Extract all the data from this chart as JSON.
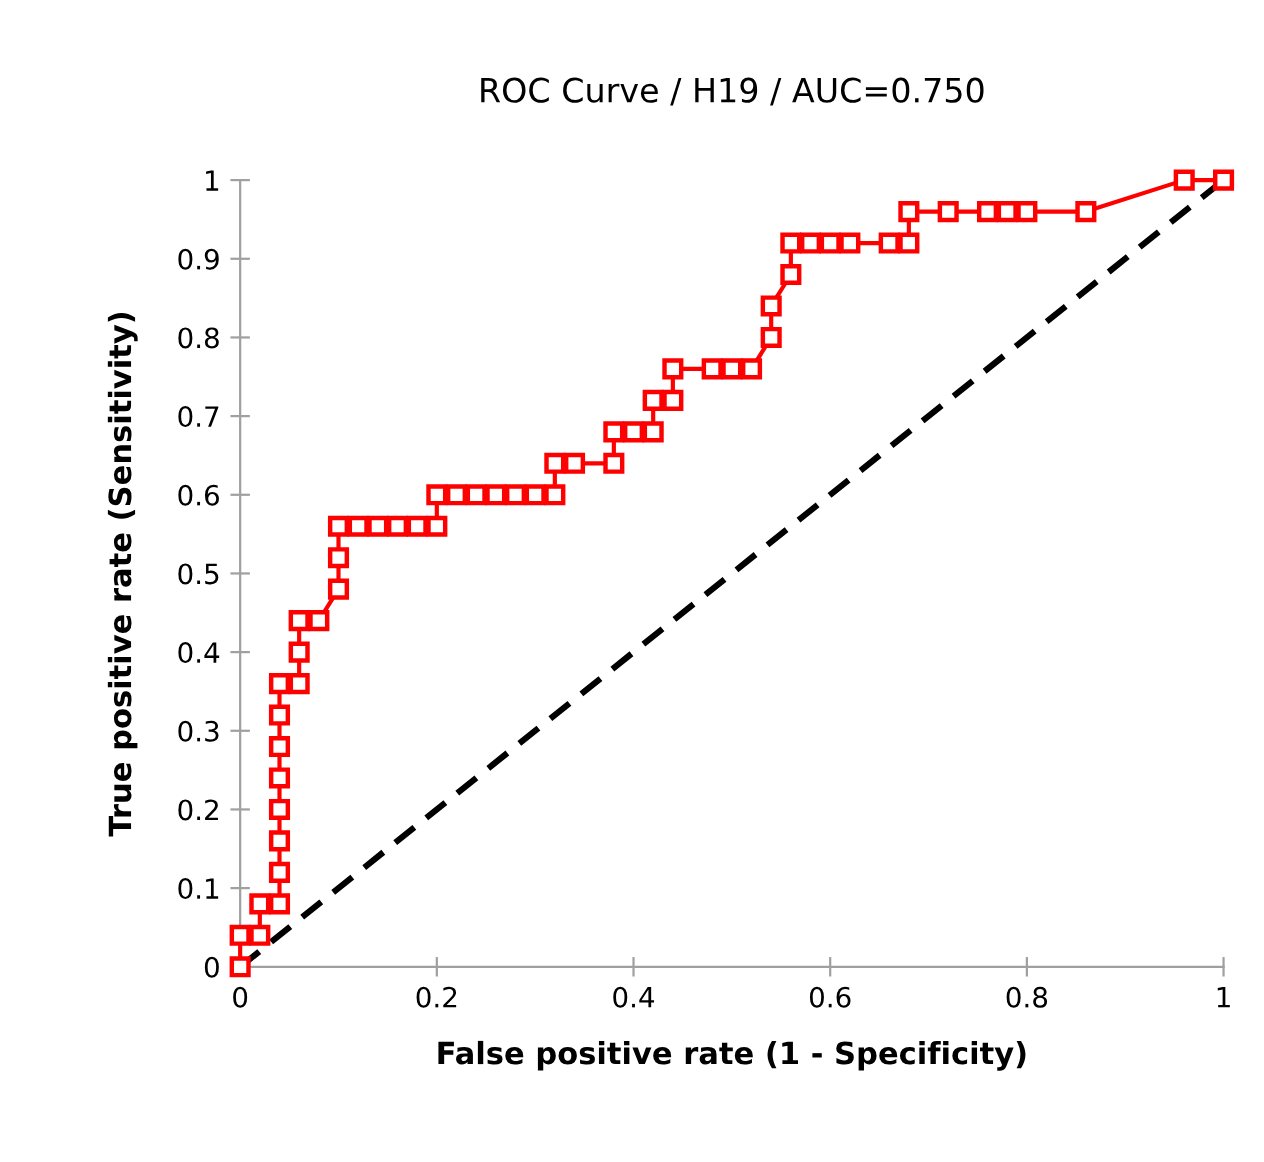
{
  "chart_data": {
    "type": "line",
    "title": "ROC Curve / H19 / AUC=0.750",
    "xlabel": "False positive rate (1 - Specificity)",
    "ylabel": "True positive rate (Sensitivity)",
    "xlim": [
      0,
      1
    ],
    "ylim": [
      0,
      1
    ],
    "xticks": [
      0,
      0.2,
      0.4,
      0.6,
      0.8,
      1
    ],
    "yticks": [
      0,
      0.1,
      0.2,
      0.3,
      0.4,
      0.5,
      0.6,
      0.7,
      0.8,
      0.9,
      1
    ],
    "grid": false,
    "legend": false,
    "series": [
      {
        "color": "#ff0000",
        "marker": "square",
        "line_style": "solid",
        "x": [
          0,
          0,
          0.02,
          0.02,
          0.04,
          0.04,
          0.04,
          0.04,
          0.04,
          0.04,
          0.04,
          0.04,
          0.06,
          0.06,
          0.06,
          0.08,
          0.1,
          0.1,
          0.1,
          0.12,
          0.14,
          0.16,
          0.18,
          0.2,
          0.2,
          0.22,
          0.24,
          0.26,
          0.28,
          0.3,
          0.32,
          0.32,
          0.34,
          0.38,
          0.38,
          0.4,
          0.42,
          0.42,
          0.44,
          0.44,
          0.48,
          0.5,
          0.52,
          0.54,
          0.54,
          0.56,
          0.56,
          0.58,
          0.6,
          0.62,
          0.66,
          0.68,
          0.68,
          0.72,
          0.76,
          0.78,
          0.8,
          0.86,
          0.96,
          1
        ],
        "values": [
          0,
          0.04,
          0.04,
          0.08,
          0.08,
          0.12,
          0.16,
          0.2,
          0.24,
          0.28,
          0.32,
          0.36,
          0.36,
          0.4,
          0.44,
          0.44,
          0.48,
          0.52,
          0.56,
          0.56,
          0.56,
          0.56,
          0.56,
          0.56,
          0.6,
          0.6,
          0.6,
          0.6,
          0.6,
          0.6,
          0.6,
          0.64,
          0.64,
          0.64,
          0.68,
          0.68,
          0.68,
          0.72,
          0.72,
          0.76,
          0.76,
          0.76,
          0.76,
          0.8,
          0.84,
          0.88,
          0.92,
          0.92,
          0.92,
          0.92,
          0.92,
          0.92,
          0.96,
          0.96,
          0.96,
          0.96,
          0.96,
          0.96,
          1,
          1
        ]
      },
      {
        "color": "#000000",
        "marker": "none",
        "line_style": "dashed",
        "x": [
          0,
          1
        ],
        "values": [
          0,
          1
        ]
      }
    ]
  }
}
